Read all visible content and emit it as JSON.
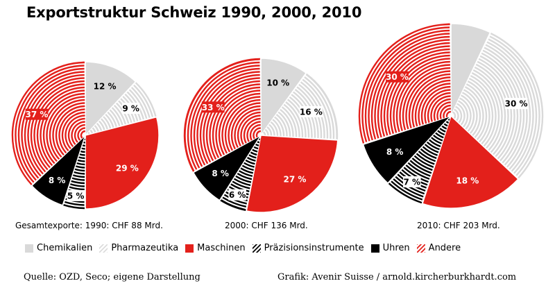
{
  "title": "Exportstruktur Schweiz 1990, 2000, 2010",
  "chart_data": [
    {
      "type": "pie",
      "year": "1990",
      "caption": "Gesamtexporte: 1990: CHF 88 Mrd.",
      "slices": [
        {
          "category": "Chemikalien",
          "value": 12,
          "label": "12 %"
        },
        {
          "category": "Pharmazeutika",
          "value": 9,
          "label": "9 %"
        },
        {
          "category": "Maschinen",
          "value": 29,
          "label": "29 %"
        },
        {
          "category": "Präzisionsinstrumente",
          "value": 5,
          "label": "5 %"
        },
        {
          "category": "Uhren",
          "value": 8,
          "label": "8 %"
        },
        {
          "category": "Andere",
          "value": 37,
          "label": "37 %"
        }
      ]
    },
    {
      "type": "pie",
      "year": "2000",
      "caption": "2000: CHF 136 Mrd.",
      "slices": [
        {
          "category": "Chemikalien",
          "value": 10,
          "label": "10 %"
        },
        {
          "category": "Pharmazeutika",
          "value": 16,
          "label": "16 %"
        },
        {
          "category": "Maschinen",
          "value": 27,
          "label": "27 %"
        },
        {
          "category": "Präzisionsinstrumente",
          "value": 6,
          "label": "6 %"
        },
        {
          "category": "Uhren",
          "value": 8,
          "label": "8 %"
        },
        {
          "category": "Andere",
          "value": 33,
          "label": "33 %"
        }
      ]
    },
    {
      "type": "pie",
      "year": "2010",
      "caption": "2010: CHF 203 Mrd.",
      "slices": [
        {
          "category": "Chemikalien",
          "value": 7,
          "label": ""
        },
        {
          "category": "Pharmazeutika",
          "value": 30,
          "label": "30 %"
        },
        {
          "category": "Maschinen",
          "value": 18,
          "label": "18 %"
        },
        {
          "category": "Präzisionsinstrumente",
          "value": 7,
          "label": "7 %"
        },
        {
          "category": "Uhren",
          "value": 8,
          "label": "8 %"
        },
        {
          "category": "Andere",
          "value": 30,
          "label": "30 %"
        }
      ]
    }
  ],
  "legend": [
    {
      "label": "Chemikalien",
      "style": "solid-grey"
    },
    {
      "label": "Pharmazeutika",
      "style": "hatched-grey"
    },
    {
      "label": "Maschinen",
      "style": "solid-red"
    },
    {
      "label": "Präzisionsinstrumente",
      "style": "hatched-black"
    },
    {
      "label": "Uhren",
      "style": "solid-black"
    },
    {
      "label": "Andere",
      "style": "hatched-red"
    }
  ],
  "colors": {
    "grey": "#d9d9d9",
    "red": "#e3201b",
    "black": "#000000"
  },
  "source": "Quelle: OZD, Seco; eigene Darstellung",
  "credit": "Grafik: Avenir Suisse / arnold.kircherburkhardt.com"
}
